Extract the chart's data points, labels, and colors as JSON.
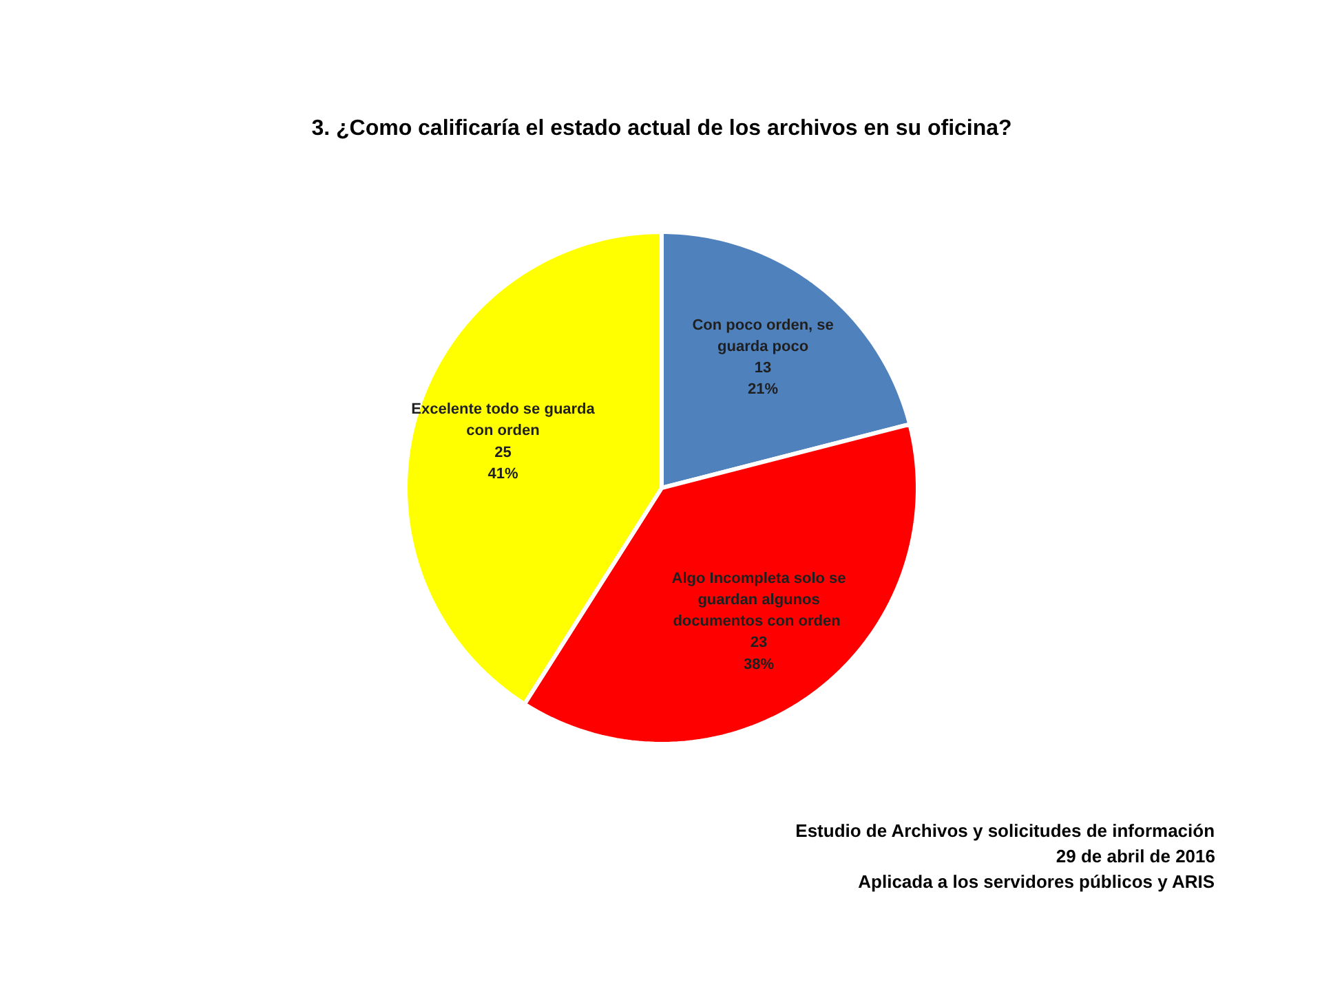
{
  "chart_data": {
    "type": "pie",
    "title": "3. ¿Como calificaría el estado actual de los archivos en su oficina?",
    "categories": [
      "Con poco orden, se guarda poco",
      "Algo Incompleta solo se guardan algunos documentos  con orden",
      "Excelente todo se guarda con orden"
    ],
    "values": [
      21,
      38,
      41
    ],
    "value_labels": [
      "13\n21%",
      "23\n38%",
      "25\n41%"
    ],
    "colors": [
      "#4f81bd",
      "#ff0000",
      "#ffff00"
    ],
    "annotations": [
      "Estudio de Archivos y solicitudes de información",
      "29 de abril de 2016",
      "Aplicada a los servidores públicos y ARIS"
    ]
  }
}
